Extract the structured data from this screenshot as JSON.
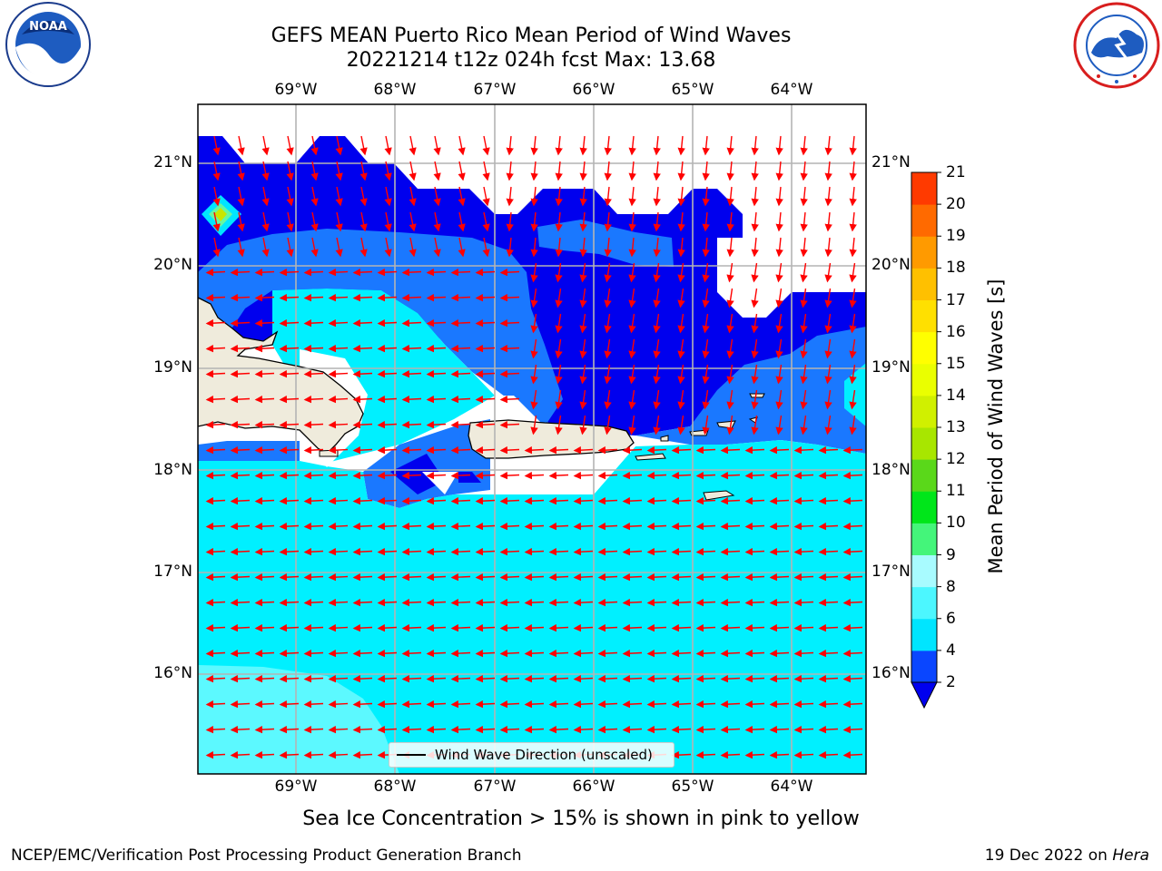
{
  "title_line1": "GEFS MEAN Puerto Rico Mean Period of Wind Waves",
  "title_line2": "20221214 t12z 024h fcst   Max: 13.68",
  "lon_labels": [
    "69°W",
    "68°W",
    "67°W",
    "66°W",
    "65°W",
    "64°W"
  ],
  "lat_labels": [
    "21°N",
    "20°N",
    "19°N",
    "18°N",
    "17°N",
    "16°N"
  ],
  "colorbar": {
    "title": "Mean Period of Wind Waves [s]",
    "ticks": [
      "2",
      "4",
      "6",
      "8",
      "9",
      "10",
      "11",
      "12",
      "13",
      "14",
      "15",
      "16",
      "17",
      "18",
      "19",
      "20",
      "21"
    ],
    "colors": [
      "#0a46ff",
      "#00e5ff",
      "#4cf7ff",
      "#a8fbff",
      "#44f57a",
      "#00e61a",
      "#5ad81a",
      "#a8e600",
      "#d0f000",
      "#eaff00",
      "#ffff00",
      "#ffe000",
      "#ffc000",
      "#ff9a00",
      "#ff6a00",
      "#ff3a00",
      "#ff0000"
    ],
    "extend_color": "#0000ee"
  },
  "legend_label": "Wind Wave Direction (unscaled)",
  "note": "Sea Ice Concentration > 15% is shown in pink to yellow",
  "footer_left": "NCEP/EMC/Verification Post Processing Product Generation Branch",
  "footer_right_prefix": "19 Dec 2022 on ",
  "footer_right_host": "Hera",
  "logos": {
    "left": "NOAA",
    "right": "NATIONAL WEATHER SERVICE"
  }
}
